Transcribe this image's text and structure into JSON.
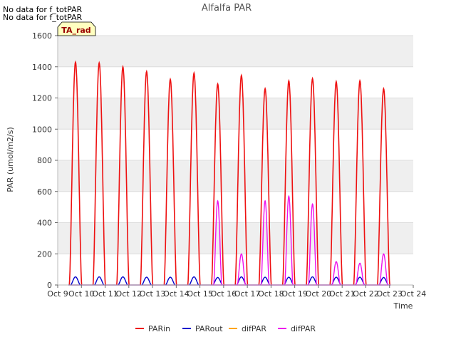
{
  "messages": [
    "No data for f_totPAR",
    "No data for f_totPAR"
  ],
  "badge": {
    "text": "TA_rad",
    "fill": "#ffffc0",
    "text_color": "#990000"
  },
  "chart_data": {
    "type": "line",
    "title": "Alfalfa PAR",
    "xlabel": "Time",
    "ylabel": "PAR (umol/m2/s)",
    "xlim": [
      9,
      24
    ],
    "ylim": [
      0,
      1600
    ],
    "xticks": [
      9,
      10,
      11,
      12,
      13,
      14,
      15,
      16,
      17,
      18,
      19,
      20,
      21,
      22,
      23,
      24
    ],
    "xtick_labels": [
      "Oct 9",
      "Oct 10",
      "Oct 11",
      "Oct 12",
      "Oct 13",
      "Oct 14",
      "Oct 15",
      "Oct 16",
      "Oct 17",
      "Oct 18",
      "Oct 19",
      "Oct 20",
      "Oct 21",
      "Oct 22",
      "Oct 23",
      "Oct 24"
    ],
    "yticks": [
      0,
      200,
      400,
      600,
      800,
      1000,
      1200,
      1400,
      1600
    ],
    "grid": true,
    "legend_position": "bottom",
    "series": [
      {
        "name": "PARin",
        "color": "#ee1111",
        "daily_peaks": [
          {
            "day": 9.75,
            "peak": 1430
          },
          {
            "day": 10.75,
            "peak": 1425
          },
          {
            "day": 11.75,
            "peak": 1400
          },
          {
            "day": 12.75,
            "peak": 1370
          },
          {
            "day": 13.75,
            "peak": 1320
          },
          {
            "day": 14.75,
            "peak": 1360
          },
          {
            "day": 15.75,
            "peak": 1290
          },
          {
            "day": 16.75,
            "peak": 1345
          },
          {
            "day": 17.75,
            "peak": 1260
          },
          {
            "day": 18.75,
            "peak": 1310
          },
          {
            "day": 19.75,
            "peak": 1325
          },
          {
            "day": 20.75,
            "peak": 1305
          },
          {
            "day": 21.75,
            "peak": 1310
          },
          {
            "day": 22.75,
            "peak": 1260
          }
        ]
      },
      {
        "name": "PARout",
        "color": "#0000cc",
        "daily_peaks": [
          {
            "day": 9.75,
            "peak": 52
          },
          {
            "day": 10.75,
            "peak": 52
          },
          {
            "day": 11.75,
            "peak": 52
          },
          {
            "day": 12.75,
            "peak": 50
          },
          {
            "day": 13.75,
            "peak": 50
          },
          {
            "day": 14.75,
            "peak": 52
          },
          {
            "day": 15.75,
            "peak": 48
          },
          {
            "day": 16.75,
            "peak": 52
          },
          {
            "day": 17.75,
            "peak": 50
          },
          {
            "day": 18.75,
            "peak": 50
          },
          {
            "day": 19.75,
            "peak": 52
          },
          {
            "day": 20.75,
            "peak": 50
          },
          {
            "day": 21.75,
            "peak": 50
          },
          {
            "day": 22.75,
            "peak": 48
          }
        ]
      },
      {
        "name": "difPAR",
        "color": "#ffa500",
        "daily_peaks": []
      },
      {
        "name": "difPAR",
        "color": "#ee11ee",
        "daily_peaks": [
          {
            "day": 15.75,
            "peak": 540
          },
          {
            "day": 16.75,
            "peak": 200
          },
          {
            "day": 17.75,
            "peak": 540
          },
          {
            "day": 18.75,
            "peak": 570
          },
          {
            "day": 19.75,
            "peak": 520
          },
          {
            "day": 20.75,
            "peak": 150
          },
          {
            "day": 21.75,
            "peak": 140
          },
          {
            "day": 22.75,
            "peak": 200
          }
        ]
      }
    ]
  }
}
